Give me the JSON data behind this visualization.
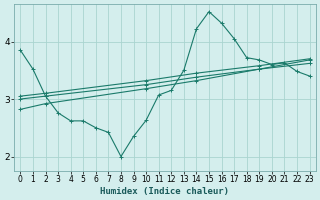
{
  "title": "",
  "xlabel": "Humidex (Indice chaleur)",
  "bg_color": "#d4eeed",
  "grid_color": "#aad4d0",
  "line_color": "#1a7a6a",
  "xlim": [
    -0.5,
    23.5
  ],
  "ylim": [
    1.75,
    4.65
  ],
  "yticks": [
    2,
    3,
    4
  ],
  "xticks": [
    0,
    1,
    2,
    3,
    4,
    5,
    6,
    7,
    8,
    9,
    10,
    11,
    12,
    13,
    14,
    15,
    16,
    17,
    18,
    19,
    20,
    21,
    22,
    23
  ],
  "line1_x": [
    0,
    1,
    2,
    3,
    4,
    5,
    6,
    7,
    8,
    9,
    10,
    11,
    12,
    13,
    14,
    15,
    16,
    17,
    18,
    19,
    20,
    21,
    22,
    23
  ],
  "line1_y": [
    3.85,
    3.52,
    3.05,
    2.76,
    2.62,
    2.62,
    2.5,
    2.42,
    2.0,
    2.35,
    2.63,
    3.07,
    3.15,
    3.5,
    4.22,
    4.52,
    4.32,
    4.05,
    3.72,
    3.68,
    3.6,
    3.63,
    3.48,
    3.4
  ],
  "line2_x": [
    0,
    2,
    10,
    14,
    19,
    23
  ],
  "line2_y": [
    3.05,
    3.1,
    3.32,
    3.45,
    3.58,
    3.7
  ],
  "line3_x": [
    0,
    2,
    10,
    14,
    19,
    23
  ],
  "line3_y": [
    3.0,
    3.05,
    3.25,
    3.38,
    3.52,
    3.62
  ],
  "line4_x": [
    0,
    2,
    10,
    14,
    19,
    23
  ],
  "line4_y": [
    2.82,
    2.92,
    3.18,
    3.32,
    3.52,
    3.68
  ]
}
